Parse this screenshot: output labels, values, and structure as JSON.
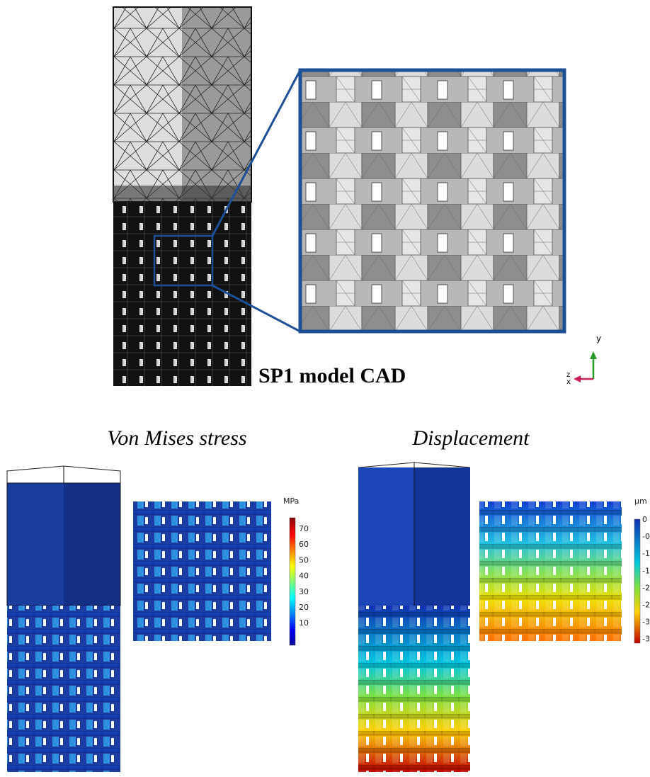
{
  "figure": {
    "cad_label": "SP1 model CAD",
    "axes_triad": {
      "y": "y",
      "z": "z",
      "x": "x"
    },
    "panels": [
      {
        "title": "Von Mises stress",
        "colorbar": {
          "unit": "MPa",
          "ticks": [
            "70",
            "60",
            "50",
            "40",
            "30",
            "20",
            "10"
          ]
        }
      },
      {
        "title": "Displacement",
        "colorbar": {
          "unit": "µm",
          "ticks": [
            "0",
            "-0",
            "-1",
            "-1",
            "-2",
            "-2",
            "-3",
            "-3"
          ]
        }
      }
    ]
  }
}
